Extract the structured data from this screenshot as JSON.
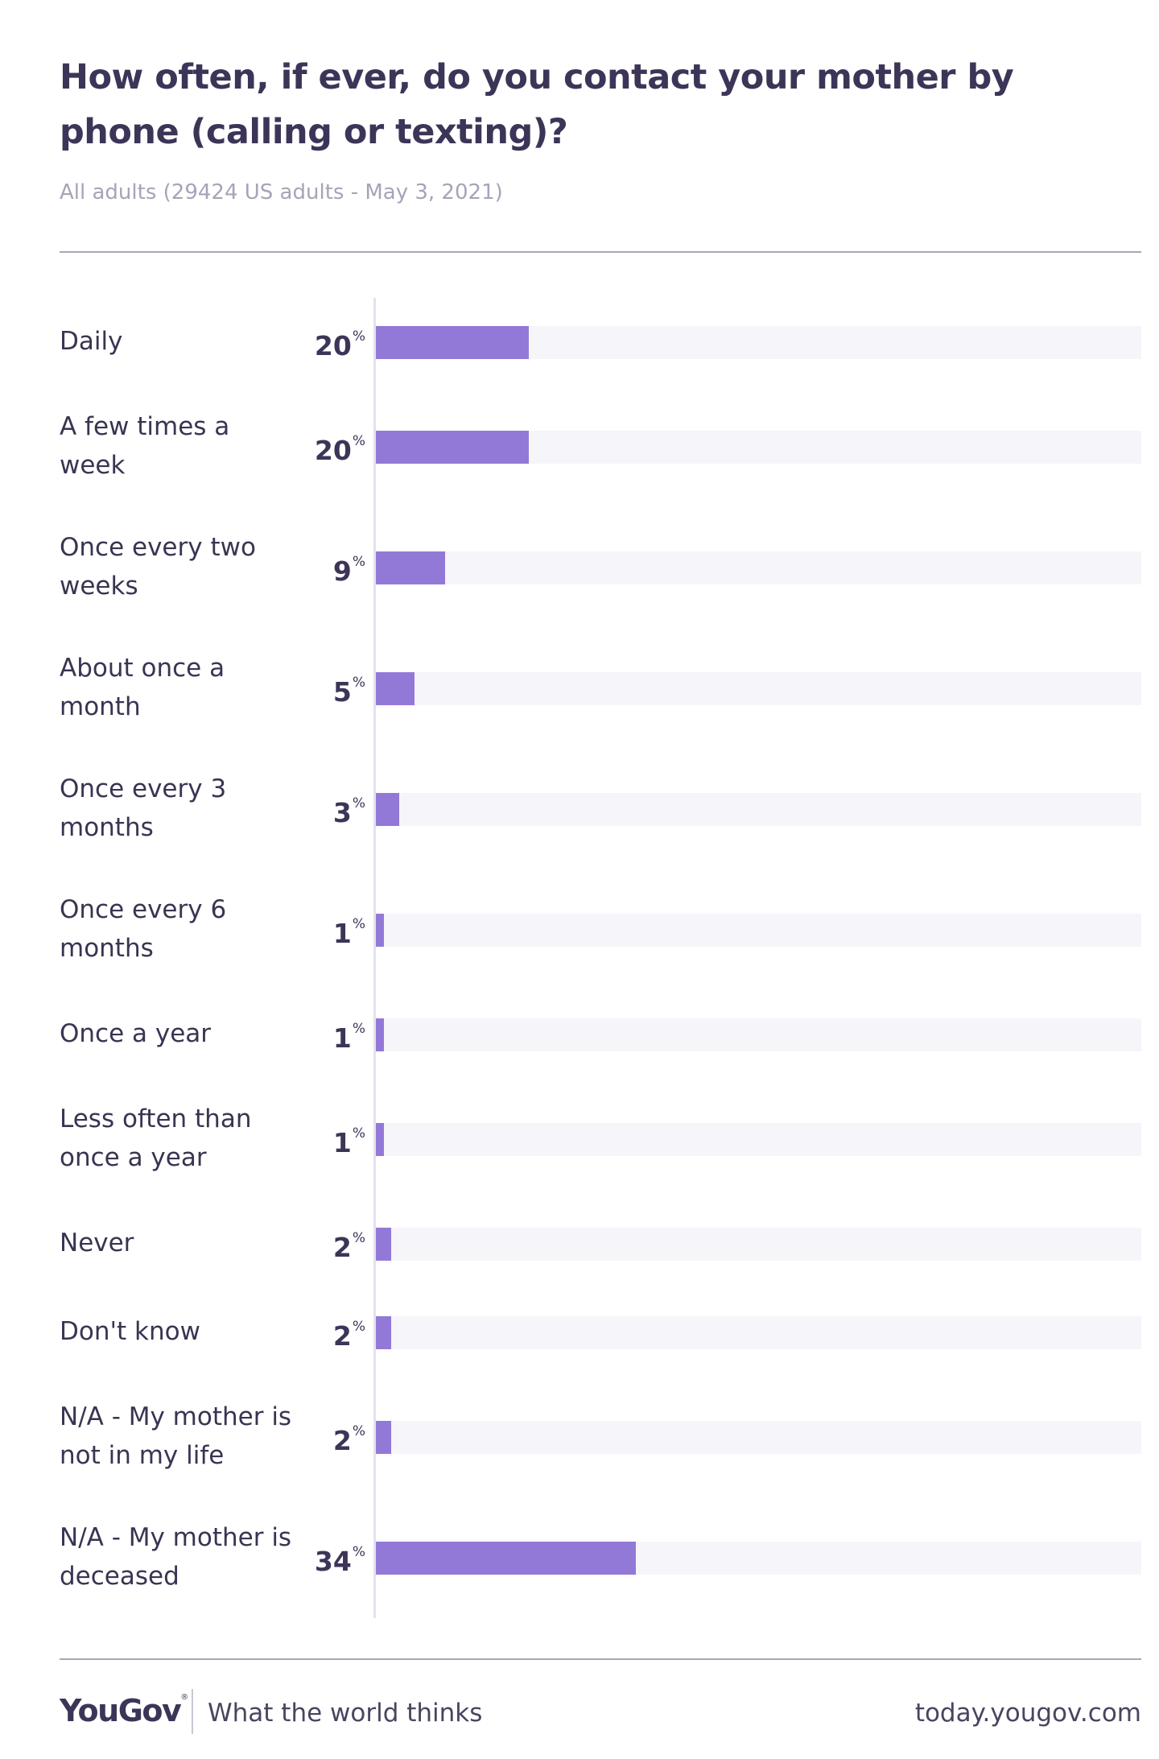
{
  "header": {
    "title": "How often, if ever, do you contact your mother by phone (calling or texting)?",
    "subtitle": "All adults (29424 US adults - May 3, 2021)"
  },
  "footer": {
    "brand": "YouGov",
    "tagline": "What the world thinks",
    "url": "today.yougov.com"
  },
  "colors": {
    "bar": "#9279d8",
    "track": "#f6f5fa",
    "text": "#3d3558"
  },
  "chart_data": {
    "type": "bar",
    "orientation": "horizontal",
    "unit": "%",
    "xlim": [
      0,
      100
    ],
    "categories": [
      "Daily",
      "A few times a week",
      "Once every two weeks",
      "About once a month",
      "Once every 3 months",
      "Once every 6 months",
      "Once a year",
      "Less often than once a year",
      "Never",
      "Don't know",
      "N/A - My mother is not in my life",
      "N/A - My mother is deceased"
    ],
    "values": [
      20,
      20,
      9,
      5,
      3,
      1,
      1,
      1,
      2,
      2,
      2,
      34
    ]
  }
}
